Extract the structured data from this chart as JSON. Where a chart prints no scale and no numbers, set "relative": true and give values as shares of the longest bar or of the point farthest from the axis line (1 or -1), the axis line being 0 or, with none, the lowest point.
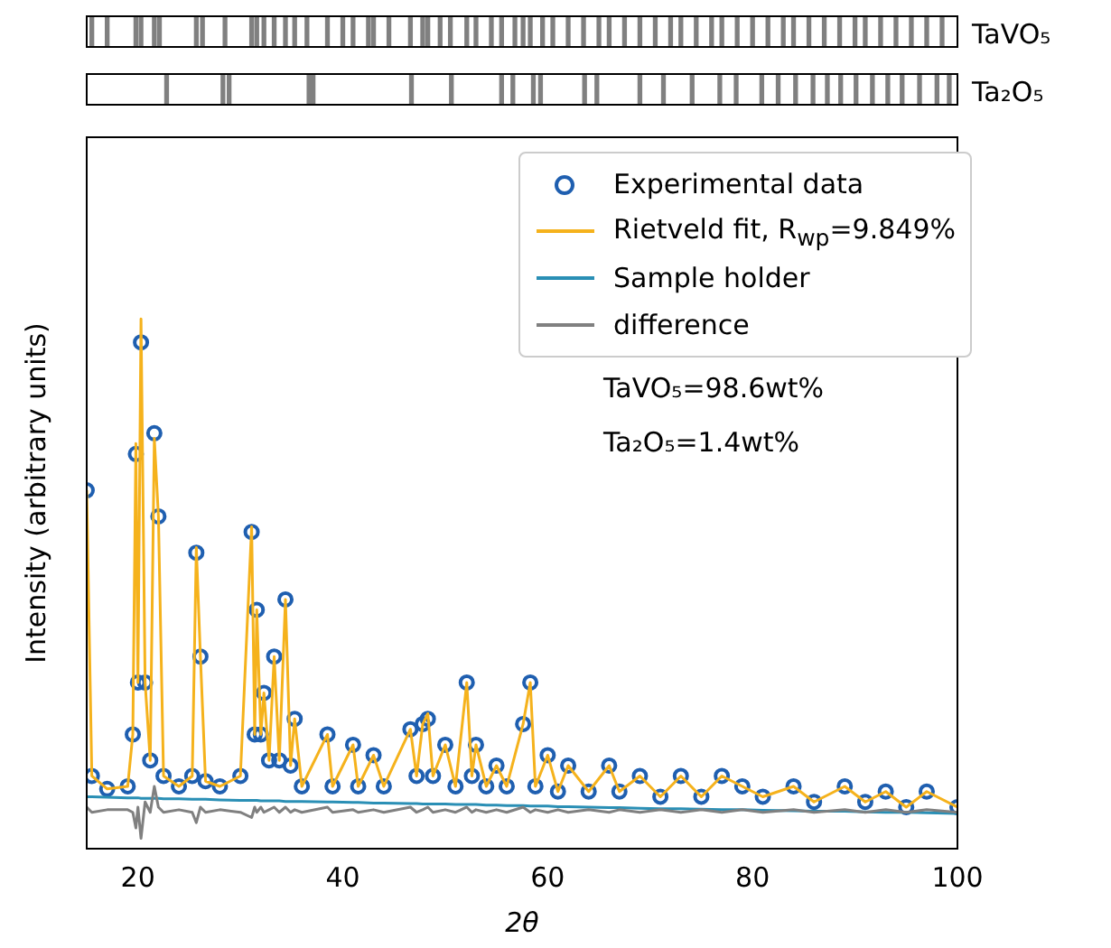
{
  "chart_data": [
    {
      "type": "bar",
      "relative": true,
      "ylabel": "TaVO₅",
      "xlim": [
        15,
        100
      ],
      "color": "#808080",
      "x": [
        15.5,
        17,
        19.8,
        20.3,
        21.6,
        22.1,
        25.7,
        26.3,
        28.5,
        31.1,
        31.6,
        32.3,
        33.3,
        34.4,
        35.3,
        36.5,
        38.5,
        40,
        41,
        42.5,
        43,
        44.5,
        46.6,
        47.8,
        48.3,
        49.5,
        50.5,
        52.1,
        53,
        54.5,
        55.5,
        56.8,
        57.6,
        58.3,
        59.5,
        60.5,
        62,
        63.5,
        65,
        66,
        67.5,
        69,
        70.5,
        72,
        73,
        74.5,
        76,
        77,
        78.5,
        80,
        81.5,
        83,
        84,
        85.5,
        87,
        88.5,
        90,
        91,
        92.5,
        94,
        95.5,
        97,
        98.5
      ],
      "values": [
        1,
        1,
        1,
        1,
        1,
        1,
        1,
        1,
        1,
        1,
        1,
        1,
        1,
        1,
        1,
        1,
        1,
        1,
        1,
        1,
        1,
        1,
        1,
        1,
        1,
        1,
        1,
        1,
        1,
        1,
        1,
        1,
        1,
        1,
        1,
        1,
        1,
        1,
        1,
        1,
        1,
        1,
        1,
        1,
        1,
        1,
        1,
        1,
        1,
        1,
        1,
        1,
        1,
        1,
        1,
        1,
        1,
        1,
        1,
        1,
        1,
        1,
        1
      ]
    },
    {
      "type": "bar",
      "relative": true,
      "ylabel": "Ta₂O₅",
      "xlim": [
        15,
        100
      ],
      "color": "#808080",
      "x": [
        22.8,
        28.3,
        28.9,
        36.7,
        37.1,
        46.7,
        50.6,
        55.5,
        56.6,
        58.6,
        59.3,
        63.6,
        64.8,
        69.0,
        71.3,
        74.1,
        76.8,
        78.4,
        80.9,
        82.5,
        84.2,
        85.9,
        87.3,
        88.6,
        90.1,
        91.7,
        93.2,
        94.6,
        96.3,
        98.0,
        99.2
      ],
      "values": [
        1,
        1,
        1,
        1,
        1,
        1,
        1,
        1,
        1,
        1,
        1,
        1,
        1,
        1,
        1,
        1,
        1,
        1,
        1,
        1,
        1,
        1,
        1,
        1,
        1,
        1,
        1,
        1,
        1,
        1,
        1
      ]
    },
    {
      "type": "line",
      "relative": true,
      "xlabel": "2θ",
      "ylabel": "Intensity (arbitrary units)",
      "xlim": [
        15,
        100
      ],
      "xticks": [
        20,
        40,
        60,
        80,
        100
      ],
      "grid": false,
      "legend": "top right",
      "annotations": [
        "TaVO₅=98.6wt%",
        "Ta₂O₅=1.4wt%"
      ],
      "x": [
        15,
        15.5,
        17,
        19,
        19.5,
        19.8,
        20.0,
        20.3,
        20.7,
        21.2,
        21.6,
        22.0,
        22.5,
        24,
        25.3,
        25.7,
        26.1,
        26.6,
        28,
        30,
        31.1,
        31.4,
        31.6,
        32.0,
        32.3,
        32.8,
        33.3,
        33.8,
        34.4,
        34.9,
        35.3,
        36,
        38.5,
        39,
        41,
        41.5,
        43,
        44,
        46.6,
        47.2,
        47.8,
        48.3,
        48.8,
        50,
        51,
        52.1,
        52.6,
        53,
        54,
        55,
        56,
        57.6,
        58.3,
        58.8,
        60,
        61,
        62,
        64,
        66,
        67,
        69,
        71,
        73,
        75,
        77,
        79,
        81,
        84,
        86,
        89,
        91,
        93,
        95,
        97,
        100
      ],
      "series": [
        {
          "name": "Experimental data",
          "type": "scatter",
          "marker": "circle",
          "color": "#1f5fb0",
          "values": [
            0.67,
            0.12,
            0.095,
            0.1,
            0.2,
            0.74,
            0.3,
            0.955,
            0.3,
            0.15,
            0.78,
            0.62,
            0.12,
            0.1,
            0.12,
            0.55,
            0.35,
            0.11,
            0.1,
            0.12,
            0.59,
            0.2,
            0.44,
            0.2,
            0.28,
            0.15,
            0.35,
            0.15,
            0.46,
            0.14,
            0.23,
            0.1,
            0.2,
            0.1,
            0.18,
            0.1,
            0.16,
            0.1,
            0.21,
            0.12,
            0.22,
            0.23,
            0.12,
            0.18,
            0.1,
            0.3,
            0.12,
            0.18,
            0.1,
            0.14,
            0.1,
            0.22,
            0.3,
            0.1,
            0.16,
            0.09,
            0.14,
            0.09,
            0.14,
            0.09,
            0.12,
            0.08,
            0.12,
            0.08,
            0.12,
            0.1,
            0.08,
            0.1,
            0.07,
            0.1,
            0.07,
            0.09,
            0.06,
            0.09,
            0.06
          ]
        },
        {
          "name": "Rietveld fit, R$_{wp}$=9.849%",
          "type": "line",
          "marker": "none",
          "color": "#f5b21c",
          "values": [
            0.67,
            0.12,
            0.095,
            0.1,
            0.2,
            0.76,
            0.3,
            1.0,
            0.3,
            0.15,
            0.77,
            0.62,
            0.12,
            0.1,
            0.12,
            0.56,
            0.35,
            0.11,
            0.1,
            0.12,
            0.6,
            0.2,
            0.44,
            0.2,
            0.28,
            0.15,
            0.35,
            0.15,
            0.46,
            0.14,
            0.23,
            0.1,
            0.2,
            0.1,
            0.18,
            0.1,
            0.16,
            0.1,
            0.21,
            0.12,
            0.22,
            0.24,
            0.12,
            0.18,
            0.1,
            0.3,
            0.12,
            0.18,
            0.1,
            0.14,
            0.1,
            0.22,
            0.3,
            0.1,
            0.16,
            0.09,
            0.14,
            0.09,
            0.14,
            0.09,
            0.12,
            0.08,
            0.12,
            0.08,
            0.12,
            0.1,
            0.08,
            0.1,
            0.07,
            0.1,
            0.07,
            0.09,
            0.06,
            0.09,
            0.06
          ]
        },
        {
          "name": "Sample holder",
          "type": "line",
          "marker": "none",
          "color": "#2a8fb5",
          "values": [
            0.08,
            0.08,
            0.079,
            0.078,
            0.078,
            0.078,
            0.078,
            0.077,
            0.077,
            0.077,
            0.077,
            0.077,
            0.076,
            0.076,
            0.075,
            0.075,
            0.075,
            0.075,
            0.074,
            0.073,
            0.073,
            0.073,
            0.073,
            0.072,
            0.072,
            0.072,
            0.072,
            0.072,
            0.071,
            0.071,
            0.071,
            0.071,
            0.07,
            0.07,
            0.069,
            0.069,
            0.068,
            0.068,
            0.067,
            0.067,
            0.066,
            0.066,
            0.066,
            0.066,
            0.065,
            0.065,
            0.065,
            0.065,
            0.064,
            0.064,
            0.063,
            0.063,
            0.062,
            0.062,
            0.062,
            0.061,
            0.061,
            0.06,
            0.059,
            0.059,
            0.058,
            0.057,
            0.057,
            0.056,
            0.055,
            0.055,
            0.054,
            0.053,
            0.052,
            0.052,
            0.051,
            0.05,
            0.05,
            0.049,
            0.048
          ]
        },
        {
          "name": "difference",
          "type": "line",
          "marker": "none",
          "color": "#808080",
          "values": [
            0.06,
            0.05,
            0.055,
            0.055,
            0.05,
            0.02,
            0.06,
            0.0,
            0.07,
            0.05,
            0.1,
            0.06,
            0.05,
            0.055,
            0.05,
            0.03,
            0.06,
            0.05,
            0.055,
            0.05,
            0.04,
            0.06,
            0.05,
            0.06,
            0.05,
            0.055,
            0.06,
            0.05,
            0.06,
            0.05,
            0.055,
            0.05,
            0.06,
            0.05,
            0.055,
            0.05,
            0.055,
            0.05,
            0.06,
            0.05,
            0.055,
            0.06,
            0.05,
            0.055,
            0.05,
            0.06,
            0.05,
            0.055,
            0.05,
            0.055,
            0.05,
            0.06,
            0.05,
            0.055,
            0.05,
            0.055,
            0.05,
            0.055,
            0.05,
            0.055,
            0.05,
            0.055,
            0.05,
            0.055,
            0.05,
            0.055,
            0.05,
            0.055,
            0.05,
            0.055,
            0.05,
            0.055,
            0.05,
            0.055,
            0.05
          ]
        }
      ]
    }
  ]
}
